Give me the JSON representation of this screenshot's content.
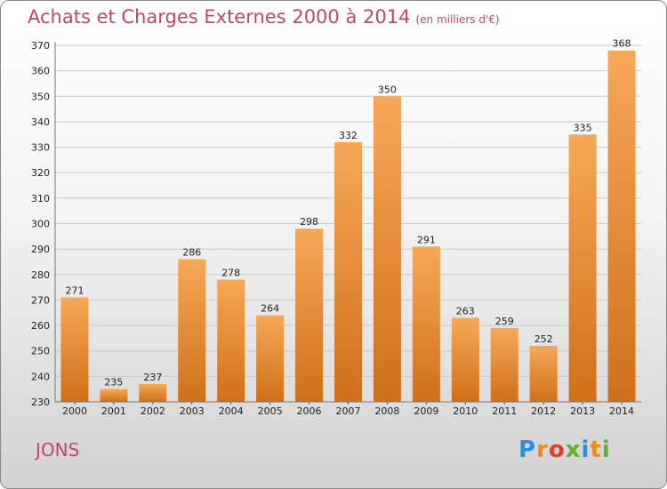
{
  "title": "Achats et Charges Externes 2000 à 2014",
  "unit": "(en milliers d'€)",
  "commune": "JONS",
  "logo": {
    "letters": [
      "P",
      "r",
      "o",
      "x",
      "i",
      "t",
      "i"
    ],
    "colors": [
      "#2a8fd6",
      "#f08a1c",
      "#e33b2e",
      "#63b233",
      "#2a8fd6",
      "#f08a1c",
      "#63b233"
    ]
  },
  "colors": {
    "title": "#c0466b",
    "bar_top": "#f7a857",
    "bar_bottom": "#d0701a",
    "grid": "#c8c8c8"
  },
  "chart_data": {
    "type": "bar",
    "title": "Achats et Charges Externes 2000 à 2014",
    "xlabel": "",
    "ylabel": "",
    "categories": [
      "2000",
      "2001",
      "2002",
      "2003",
      "2004",
      "2005",
      "2006",
      "2007",
      "2008",
      "2009",
      "2010",
      "2011",
      "2012",
      "2013",
      "2014"
    ],
    "values": [
      271,
      235,
      237,
      286,
      278,
      264,
      298,
      332,
      350,
      291,
      263,
      259,
      252,
      335,
      368
    ],
    "ylim": [
      230,
      370
    ],
    "yticks": [
      230,
      240,
      250,
      260,
      270,
      280,
      290,
      300,
      310,
      320,
      330,
      340,
      350,
      360,
      370
    ],
    "grid": true,
    "legend": "none"
  }
}
